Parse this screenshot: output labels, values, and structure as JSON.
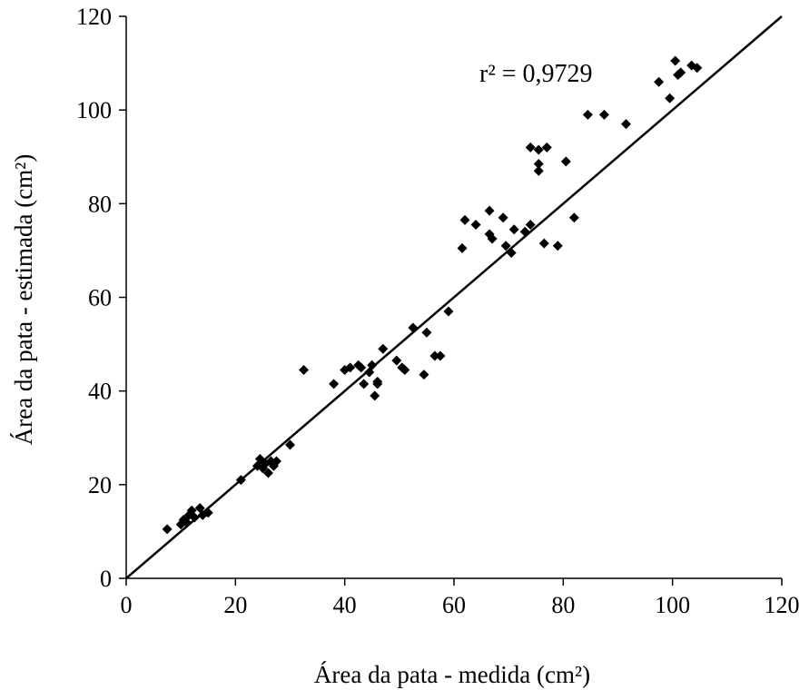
{
  "chart_data": {
    "type": "scatter",
    "title": "",
    "xlabel": "Área da pata - medida (cm²)",
    "ylabel": "Área da pata - estimada (cm²)",
    "xlim": [
      0,
      120
    ],
    "ylim": [
      0,
      120
    ],
    "x_ticks": [
      0,
      20,
      40,
      60,
      80,
      100,
      120
    ],
    "y_ticks": [
      0,
      20,
      40,
      60,
      80,
      100,
      120
    ],
    "x_tick_labels": [
      "0",
      "20",
      "40",
      "60",
      "80",
      "100",
      "120"
    ],
    "y_tick_labels": [
      "0",
      "20",
      "40",
      "60",
      "80",
      "100",
      "120"
    ],
    "grid": false,
    "marker": "diamond",
    "marker_color": "#000000",
    "annotation": "r² = 0,9729",
    "reference_line": {
      "x": [
        0,
        120
      ],
      "y": [
        0,
        120
      ]
    },
    "points": [
      [
        7.5,
        10.5
      ],
      [
        10.0,
        11.5
      ],
      [
        10.5,
        12.5
      ],
      [
        11.0,
        12.0
      ],
      [
        11.5,
        13.5
      ],
      [
        12.0,
        14.5
      ],
      [
        12.5,
        13.0
      ],
      [
        13.5,
        15.0
      ],
      [
        14.0,
        13.5
      ],
      [
        15.0,
        14.0
      ],
      [
        21.0,
        21.0
      ],
      [
        24.0,
        24.0
      ],
      [
        24.5,
        25.5
      ],
      [
        25.0,
        23.5
      ],
      [
        25.5,
        24.5
      ],
      [
        26.0,
        22.5
      ],
      [
        26.5,
        25.0
      ],
      [
        27.0,
        24.0
      ],
      [
        27.5,
        25.0
      ],
      [
        30.0,
        28.5
      ],
      [
        32.5,
        44.5
      ],
      [
        38.0,
        41.5
      ],
      [
        40.0,
        44.5
      ],
      [
        41.0,
        45.0
      ],
      [
        42.5,
        45.5
      ],
      [
        43.0,
        45.0
      ],
      [
        43.5,
        41.5
      ],
      [
        44.5,
        44.0
      ],
      [
        45.0,
        45.5
      ],
      [
        46.0,
        42.0
      ],
      [
        46.0,
        41.5
      ],
      [
        45.5,
        39.0
      ],
      [
        47.0,
        49.0
      ],
      [
        49.5,
        46.5
      ],
      [
        50.5,
        45.0
      ],
      [
        51.0,
        44.5
      ],
      [
        52.5,
        53.5
      ],
      [
        54.5,
        43.5
      ],
      [
        55.0,
        52.5
      ],
      [
        56.5,
        47.5
      ],
      [
        57.5,
        47.5
      ],
      [
        59.0,
        57.0
      ],
      [
        61.5,
        70.5
      ],
      [
        62.0,
        76.5
      ],
      [
        64.0,
        75.5
      ],
      [
        66.5,
        73.5
      ],
      [
        66.5,
        78.5
      ],
      [
        67.0,
        72.5
      ],
      [
        69.0,
        77.0
      ],
      [
        69.5,
        71.0
      ],
      [
        70.5,
        69.5
      ],
      [
        71.0,
        74.5
      ],
      [
        73.0,
        74.0
      ],
      [
        74.0,
        75.5
      ],
      [
        74.0,
        92.0
      ],
      [
        75.5,
        91.5
      ],
      [
        75.5,
        88.5
      ],
      [
        75.5,
        87.0
      ],
      [
        76.5,
        71.5
      ],
      [
        77.0,
        92.0
      ],
      [
        79.0,
        71.0
      ],
      [
        80.5,
        89.0
      ],
      [
        82.0,
        77.0
      ],
      [
        84.5,
        99.0
      ],
      [
        87.5,
        99.0
      ],
      [
        91.5,
        97.0
      ],
      [
        97.5,
        106.0
      ],
      [
        99.5,
        102.5
      ],
      [
        100.5,
        110.5
      ],
      [
        101.0,
        107.5
      ],
      [
        101.5,
        108.0
      ],
      [
        103.5,
        109.5
      ],
      [
        104.5,
        109.0
      ]
    ]
  }
}
